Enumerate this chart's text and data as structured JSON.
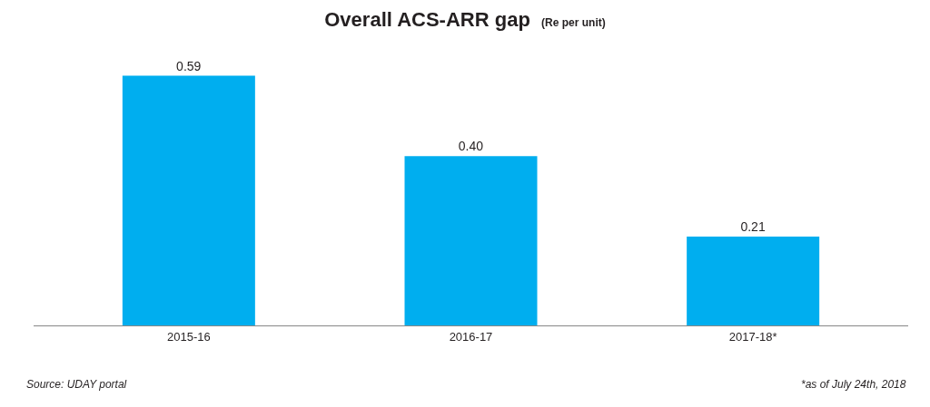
{
  "chart_data": {
    "type": "bar",
    "title": "Overall ACS-ARR gap",
    "subtitle": "(Re per unit)",
    "categories": [
      "2015-16",
      "2016-17",
      "2017-18*"
    ],
    "values": [
      0.59,
      0.4,
      0.21
    ],
    "value_labels": [
      "0.59",
      "0.40",
      "0.21"
    ],
    "color": "#00aeef",
    "annotations": [
      "Source: UDAY portal",
      "*as of July 24th, 2018"
    ]
  }
}
